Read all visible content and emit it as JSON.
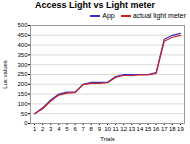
{
  "chart_data": {
    "type": "line",
    "title": "Access Light  vs Light meter",
    "xlabel": "Trials",
    "ylabel": "Lux values",
    "x": [
      1,
      2,
      3,
      4,
      5,
      6,
      7,
      8,
      9,
      10,
      11,
      12,
      13,
      14,
      15,
      16,
      17,
      18,
      19
    ],
    "series": [
      {
        "name": "App",
        "color": "#3333cc",
        "values": [
          50,
          80,
          120,
          150,
          160,
          160,
          200,
          210,
          210,
          210,
          240,
          250,
          250,
          250,
          250,
          260,
          430,
          450,
          460
        ]
      },
      {
        "name": "actual light meter",
        "color": "#cc2222",
        "values": [
          50,
          75,
          115,
          145,
          155,
          158,
          198,
          205,
          205,
          208,
          235,
          245,
          245,
          248,
          248,
          255,
          420,
          440,
          450
        ]
      }
    ],
    "xlim": [
      0.5,
      19.5
    ],
    "xticks": [
      1,
      2,
      3,
      4,
      5,
      6,
      7,
      8,
      9,
      10,
      11,
      12,
      13,
      14,
      15,
      16,
      17,
      18,
      19
    ],
    "ylim": [
      0,
      500
    ],
    "yticks": [
      0,
      50,
      100,
      150,
      200,
      250,
      300,
      350,
      400,
      450,
      500
    ],
    "grid": true,
    "legend": "right"
  }
}
